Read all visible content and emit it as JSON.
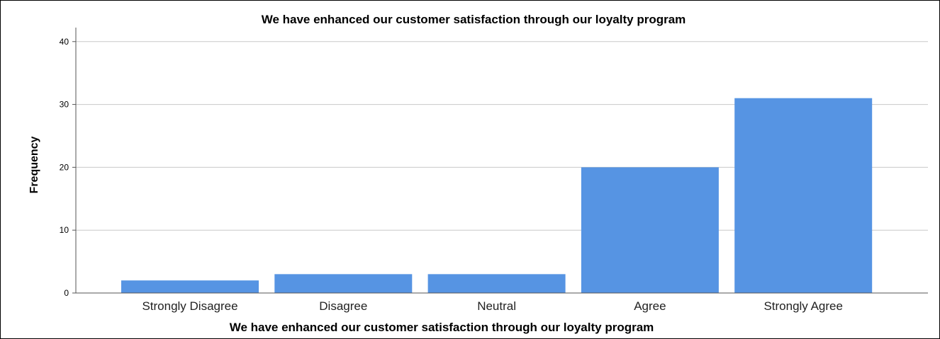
{
  "chart_data": {
    "type": "bar",
    "title": "We have enhanced our customer satisfaction through our loyalty program",
    "xlabel": "We have enhanced our customer satisfaction through our loyalty program",
    "ylabel": "Frequency",
    "categories": [
      "Strongly Disagree",
      "Disagree",
      "Neutral",
      "Agree",
      "Strongly Agree"
    ],
    "values": [
      2,
      3,
      3,
      20,
      31
    ],
    "ylim": [
      0,
      42
    ],
    "yticks": [
      0,
      10,
      20,
      30,
      40
    ],
    "grid": true,
    "legend": "none",
    "colors": {
      "bar": "#5694e3",
      "grid": "#c8c8c8",
      "axis": "#555555",
      "text": "#000000"
    }
  }
}
